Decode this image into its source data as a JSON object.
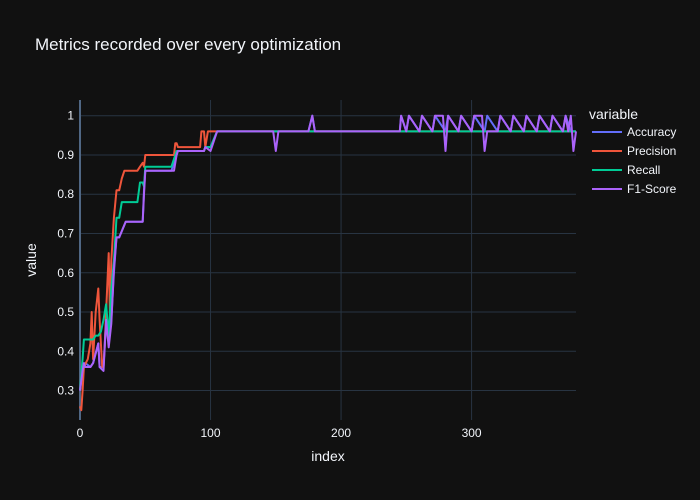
{
  "chart_data": {
    "type": "line",
    "title": "Metrics recorded over every optimization",
    "xlabel": "index",
    "ylabel": "value",
    "xlim": [
      0,
      380
    ],
    "ylim": [
      0.225,
      1.04
    ],
    "x_ticks": [
      0,
      100,
      200,
      300
    ],
    "x_tick_labels": [
      "0",
      "100",
      "200",
      "300"
    ],
    "y_ticks": [
      0.3,
      0.4,
      0.5,
      0.6,
      0.7,
      0.8,
      0.9,
      1
    ],
    "y_tick_labels": [
      "0.3",
      "0.4",
      "0.5",
      "0.6",
      "0.7",
      "0.8",
      "0.9",
      "1"
    ],
    "grid": true,
    "legend": {
      "title": "variable",
      "position": "right"
    },
    "series": [
      {
        "name": "Accuracy",
        "color": "#636efa",
        "x": [
          0,
          2,
          3,
          4,
          8,
          10,
          14,
          15,
          18,
          20,
          22,
          24,
          26,
          28,
          30,
          35,
          36,
          48,
          49,
          50,
          70,
          75,
          95,
          96,
          100,
          105,
          106,
          150,
          175,
          178,
          180,
          245,
          246,
          250,
          252,
          260,
          262,
          270,
          272,
          280,
          282,
          290,
          292,
          300,
          302,
          310,
          312,
          320,
          322,
          330,
          332,
          340,
          342,
          350,
          352,
          360,
          362,
          370,
          372,
          376,
          378,
          380
        ],
        "values": [
          0.3,
          0.35,
          0.36,
          0.37,
          0.36,
          0.37,
          0.42,
          0.36,
          0.36,
          0.48,
          0.42,
          0.48,
          0.6,
          0.69,
          0.69,
          0.73,
          0.73,
          0.73,
          0.81,
          0.86,
          0.86,
          0.91,
          0.91,
          0.92,
          0.92,
          0.96,
          0.96,
          0.96,
          0.96,
          1.0,
          0.96,
          0.96,
          1.0,
          0.96,
          1.0,
          0.96,
          1.0,
          0.96,
          1.0,
          0.96,
          1.0,
          0.96,
          1.0,
          0.96,
          1.0,
          0.96,
          1.0,
          0.96,
          1.0,
          0.96,
          1.0,
          0.96,
          1.0,
          0.96,
          1.0,
          0.96,
          1.0,
          0.96,
          1.0,
          0.96,
          0.96,
          0.96
        ]
      },
      {
        "name": "Precision",
        "color": "#ef553b",
        "x": [
          0,
          1,
          2,
          3,
          6,
          8,
          9,
          10,
          12,
          14,
          15,
          17,
          18,
          19,
          20,
          22,
          23,
          24,
          26,
          28,
          30,
          32,
          34,
          35,
          44,
          46,
          48,
          49,
          50,
          72,
          73,
          74,
          75,
          92,
          93,
          95,
          96,
          98,
          100,
          105,
          106,
          150,
          250,
          380
        ],
        "values": [
          0.26,
          0.25,
          0.3,
          0.36,
          0.38,
          0.42,
          0.5,
          0.38,
          0.5,
          0.56,
          0.48,
          0.36,
          0.36,
          0.42,
          0.5,
          0.65,
          0.48,
          0.63,
          0.74,
          0.81,
          0.81,
          0.84,
          0.86,
          0.86,
          0.86,
          0.87,
          0.88,
          0.87,
          0.9,
          0.9,
          0.93,
          0.93,
          0.92,
          0.92,
          0.96,
          0.96,
          0.92,
          0.96,
          0.96,
          0.96,
          0.96,
          0.96,
          0.96,
          0.96
        ]
      },
      {
        "name": "Recall",
        "color": "#00cc96",
        "x": [
          0,
          2,
          3,
          10,
          12,
          14,
          16,
          18,
          20,
          22,
          24,
          26,
          28,
          30,
          32,
          34,
          44,
          46,
          48,
          49,
          50,
          70,
          72,
          74,
          75,
          95,
          96,
          100,
          105,
          106,
          150,
          250,
          380
        ],
        "values": [
          0.3,
          0.38,
          0.43,
          0.43,
          0.44,
          0.44,
          0.45,
          0.48,
          0.52,
          0.44,
          0.56,
          0.63,
          0.74,
          0.74,
          0.78,
          0.78,
          0.78,
          0.83,
          0.83,
          0.82,
          0.87,
          0.87,
          0.89,
          0.91,
          0.91,
          0.91,
          0.92,
          0.92,
          0.96,
          0.96,
          0.96,
          0.96,
          0.96
        ]
      },
      {
        "name": "F1-Score",
        "color": "#ab63fa",
        "x": [
          0,
          2,
          3,
          4,
          8,
          10,
          14,
          15,
          18,
          20,
          22,
          24,
          26,
          28,
          30,
          35,
          36,
          48,
          49,
          50,
          70,
          72,
          74,
          75,
          95,
          96,
          100,
          105,
          106,
          148,
          150,
          152,
          175,
          178,
          180,
          245,
          246,
          250,
          252,
          260,
          262,
          270,
          272,
          278,
          280,
          282,
          290,
          292,
          300,
          302,
          308,
          310,
          312,
          320,
          322,
          330,
          332,
          340,
          342,
          350,
          352,
          360,
          362,
          370,
          372,
          374,
          376,
          378,
          380
        ],
        "values": [
          0.3,
          0.35,
          0.37,
          0.36,
          0.36,
          0.37,
          0.42,
          0.36,
          0.35,
          0.48,
          0.41,
          0.47,
          0.61,
          0.69,
          0.69,
          0.73,
          0.73,
          0.73,
          0.8,
          0.86,
          0.86,
          0.86,
          0.9,
          0.91,
          0.91,
          0.92,
          0.91,
          0.96,
          0.96,
          0.96,
          0.91,
          0.96,
          0.96,
          1.0,
          0.96,
          0.96,
          1.0,
          0.96,
          1.0,
          0.96,
          1.0,
          0.96,
          1.0,
          1.0,
          0.91,
          1.0,
          0.96,
          1.0,
          0.96,
          1.0,
          1.0,
          0.91,
          0.96,
          0.96,
          1.0,
          0.96,
          1.0,
          0.96,
          1.0,
          0.96,
          1.0,
          0.96,
          1.0,
          0.96,
          1.0,
          0.96,
          1.0,
          0.91,
          0.96
        ]
      }
    ]
  }
}
